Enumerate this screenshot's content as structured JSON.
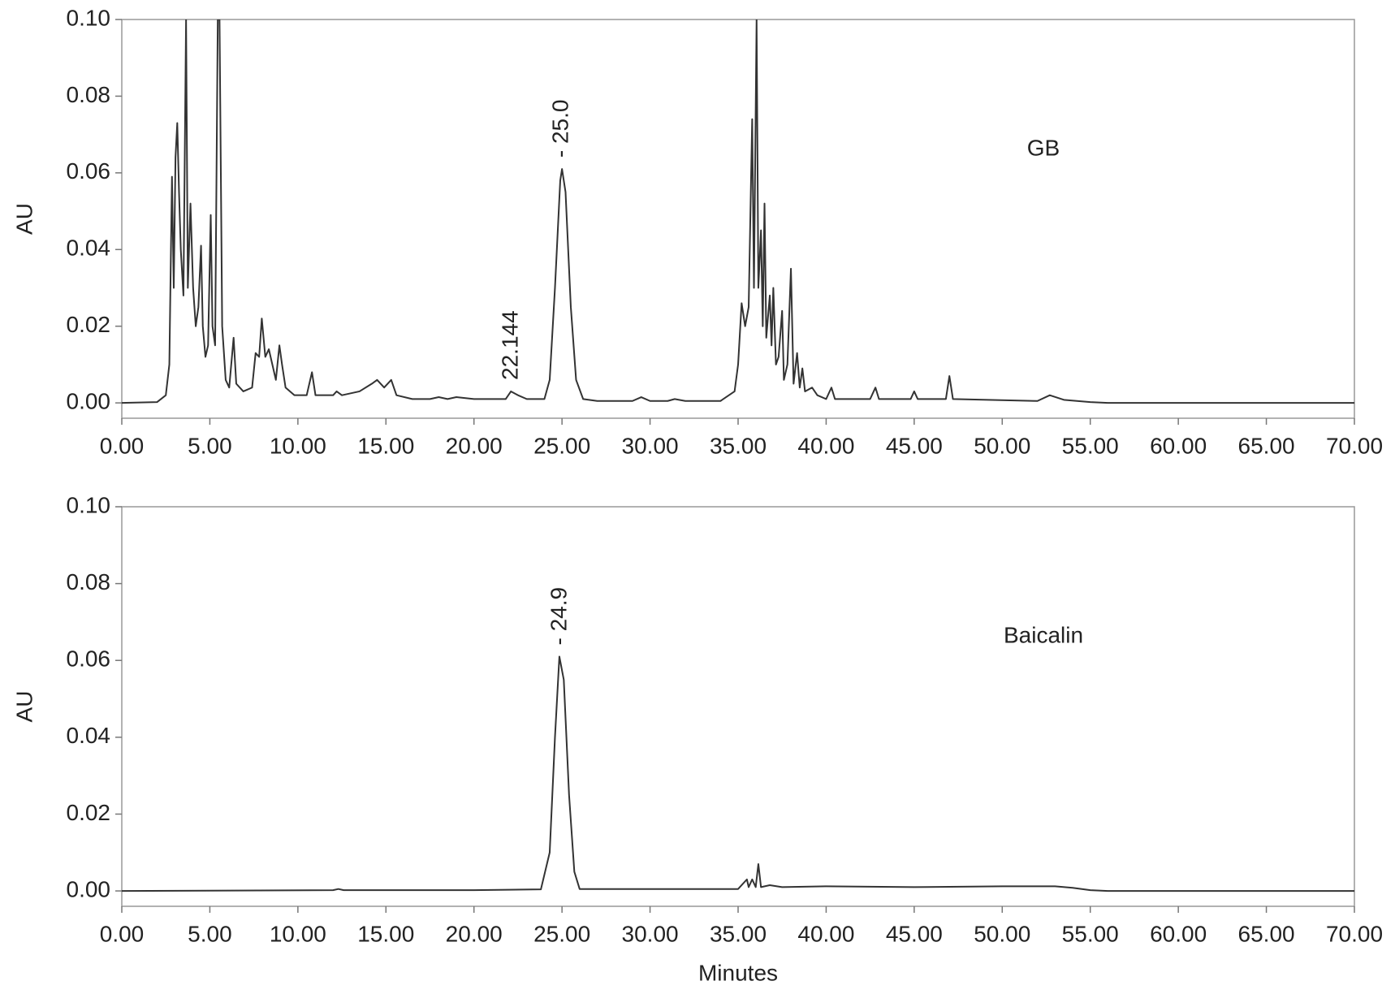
{
  "chart_data": [
    {
      "type": "line",
      "y_label": "AU",
      "x": [
        0,
        2,
        2.5,
        2.7,
        2.85,
        2.95,
        3.05,
        3.15,
        3.25,
        3.35,
        3.5,
        3.65,
        3.75,
        3.9,
        4.05,
        4.2,
        4.35,
        4.5,
        4.6,
        4.75,
        4.9,
        5.05,
        5.15,
        5.3,
        5.45,
        5.55,
        5.7,
        5.9,
        6.1,
        6.35,
        6.5,
        6.9,
        7.4,
        7.6,
        7.8,
        7.95,
        8.15,
        8.35,
        8.55,
        8.75,
        8.95,
        9.1,
        9.3,
        9.8,
        10.5,
        10.8,
        11,
        12,
        12.2,
        12.5,
        13.5,
        14.2,
        14.5,
        14.9,
        15.3,
        15.6,
        16.5,
        17.5,
        18,
        18.5,
        19,
        20,
        21,
        21.8,
        22.1,
        22.5,
        23,
        23.5,
        24,
        24.3,
        24.6,
        24.9,
        25,
        25.2,
        25.5,
        25.8,
        26.2,
        27,
        29,
        29.5,
        30,
        31,
        31.4,
        32,
        34,
        34.8,
        35,
        35.2,
        35.4,
        35.6,
        35.8,
        35.9,
        36.05,
        36.15,
        36.3,
        36.4,
        36.5,
        36.6,
        36.8,
        36.9,
        37,
        37.15,
        37.3,
        37.5,
        37.6,
        37.8,
        38,
        38.15,
        38.35,
        38.5,
        38.65,
        38.8,
        39.2,
        39.5,
        40,
        40.3,
        40.5,
        42.5,
        42.8,
        43,
        44.8,
        45,
        45.2,
        46.8,
        47,
        47.2,
        52,
        52.7,
        53.5,
        55,
        56,
        70
      ],
      "series": [
        {
          "name": "GB",
          "color": "#333333",
          "values": [
            0,
            0.0002,
            0.002,
            0.01,
            0.059,
            0.03,
            0.064,
            0.073,
            0.055,
            0.04,
            0.028,
            0.1,
            0.03,
            0.052,
            0.03,
            0.02,
            0.025,
            0.041,
            0.02,
            0.012,
            0.015,
            0.049,
            0.02,
            0.015,
            0.1,
            0.1,
            0.02,
            0.006,
            0.004,
            0.017,
            0.005,
            0.003,
            0.004,
            0.013,
            0.012,
            0.022,
            0.012,
            0.014,
            0.01,
            0.006,
            0.015,
            0.01,
            0.004,
            0.002,
            0.002,
            0.008,
            0.002,
            0.002,
            0.003,
            0.002,
            0.003,
            0.005,
            0.006,
            0.004,
            0.006,
            0.002,
            0.001,
            0.001,
            0.0015,
            0.001,
            0.0015,
            0.001,
            0.001,
            0.001,
            0.003,
            0.002,
            0.001,
            0.001,
            0.001,
            0.006,
            0.03,
            0.058,
            0.061,
            0.055,
            0.025,
            0.006,
            0.001,
            0.0005,
            0.0005,
            0.0015,
            0.0005,
            0.0005,
            0.001,
            0.0005,
            0.0005,
            0.003,
            0.01,
            0.026,
            0.02,
            0.025,
            0.074,
            0.03,
            0.1,
            0.03,
            0.045,
            0.02,
            0.052,
            0.017,
            0.028,
            0.015,
            0.03,
            0.01,
            0.012,
            0.024,
            0.006,
            0.01,
            0.035,
            0.005,
            0.013,
            0.004,
            0.009,
            0.003,
            0.004,
            0.002,
            0.001,
            0.004,
            0.001,
            0.001,
            0.004,
            0.001,
            0.001,
            0.003,
            0.001,
            0.001,
            0.007,
            0.001,
            0.0005,
            0.002,
            0.0008,
            0.0002,
            0,
            0
          ]
        }
      ],
      "annotations": [
        {
          "text": "22.144",
          "x": 22.144
        },
        {
          "text": "- 25.0",
          "x": 25.0
        }
      ],
      "xlim": [
        0,
        70
      ],
      "xticks": [
        {
          "value": 0,
          "label": "0.00"
        },
        {
          "value": 5,
          "label": "5.00"
        },
        {
          "value": 10,
          "label": "10.00"
        },
        {
          "value": 15,
          "label": "15.00"
        },
        {
          "value": 20,
          "label": "20.00"
        },
        {
          "value": 25,
          "label": "25.00"
        },
        {
          "value": 30,
          "label": "30.00"
        },
        {
          "value": 35,
          "label": "35.00"
        },
        {
          "value": 40,
          "label": "40.00"
        },
        {
          "value": 45,
          "label": "45.00"
        },
        {
          "value": 50,
          "label": "50.00"
        },
        {
          "value": 55,
          "label": "55.00"
        },
        {
          "value": 60,
          "label": "60.00"
        },
        {
          "value": 65,
          "label": "65.00"
        },
        {
          "value": 70,
          "label": "70.00"
        }
      ],
      "ylim": [
        -0.004,
        0.1
      ],
      "yticks": [
        {
          "value": 0,
          "label": "0.00"
        },
        0.02,
        0.04,
        0.06,
        0.08,
        {
          "value": 0.1,
          "label": "0.10"
        }
      ]
    },
    {
      "type": "line",
      "y_label": "AU",
      "x_label": "Minutes",
      "x": [
        0,
        12,
        12.3,
        12.6,
        20,
        23.8,
        24.3,
        24.6,
        24.85,
        25.1,
        25.4,
        25.7,
        26,
        30,
        35,
        35.5,
        35.6,
        35.8,
        36,
        36.15,
        36.3,
        36.8,
        37.5,
        40,
        45,
        50,
        53,
        54,
        55,
        56,
        70
      ],
      "series": [
        {
          "name": "Baicalin",
          "color": "#333333",
          "values": [
            0,
            0.0002,
            0.0005,
            0.0002,
            0.0002,
            0.0004,
            0.01,
            0.04,
            0.061,
            0.055,
            0.025,
            0.005,
            0.0005,
            0.0005,
            0.0005,
            0.003,
            0.001,
            0.003,
            0.001,
            0.007,
            0.001,
            0.0015,
            0.001,
            0.0012,
            0.001,
            0.0012,
            0.0012,
            0.0008,
            0.0002,
            0,
            0
          ]
        }
      ],
      "annotations": [
        {
          "text": "- 24.9",
          "x": 24.9
        }
      ],
      "xlim": [
        0,
        70
      ],
      "xticks": [
        {
          "value": 0,
          "label": "0.00"
        },
        {
          "value": 5,
          "label": "5.00"
        },
        {
          "value": 10,
          "label": "10.00"
        },
        {
          "value": 15,
          "label": "15.00"
        },
        {
          "value": 20,
          "label": "20.00"
        },
        {
          "value": 25,
          "label": "25.00"
        },
        {
          "value": 30,
          "label": "30.00"
        },
        {
          "value": 35,
          "label": "35.00"
        },
        {
          "value": 40,
          "label": "40.00"
        },
        {
          "value": 45,
          "label": "45.00"
        },
        {
          "value": 50,
          "label": "50.00"
        },
        {
          "value": 55,
          "label": "55.00"
        },
        {
          "value": 60,
          "label": "60.00"
        },
        {
          "value": 65,
          "label": "65.00"
        },
        {
          "value": 70,
          "label": "70.00"
        }
      ],
      "ylim": [
        -0.004,
        0.1
      ],
      "yticks": [
        {
          "value": 0,
          "label": "0.00"
        },
        0.02,
        0.04,
        0.06,
        0.08,
        {
          "value": 0.1,
          "label": "0.10"
        }
      ]
    }
  ]
}
